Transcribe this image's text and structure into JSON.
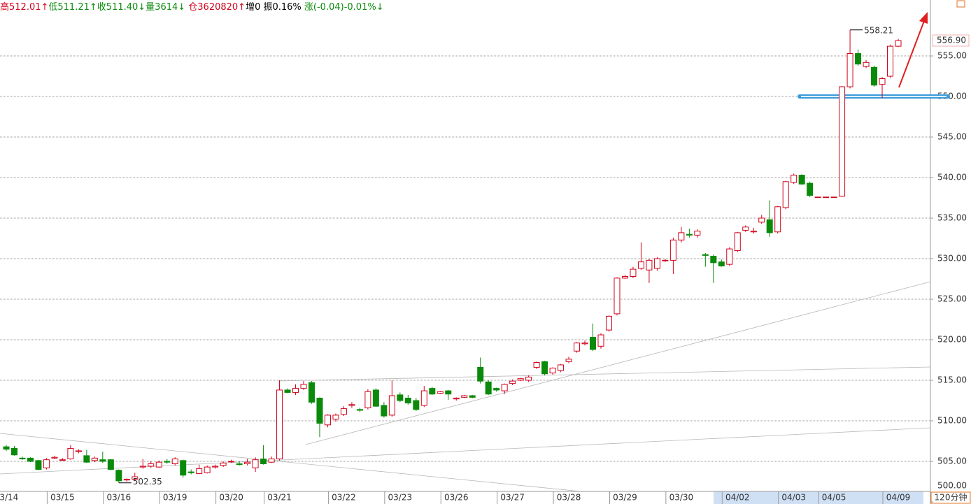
{
  "chart_data": {
    "type": "candlestick",
    "header": [
      {
        "text": "高512.01↑",
        "color": "#d0021b"
      },
      {
        "text": "低511.21↑",
        "color": "#0a8a0a"
      },
      {
        "text": "收511.40↓",
        "color": "#0a8a0a"
      },
      {
        "text": "量3614↓ ",
        "color": "#0a8a0a"
      },
      {
        "text": "仓3620820↑",
        "color": "#d0021b"
      },
      {
        "text": "增0 ",
        "color": "#000000"
      },
      {
        "text": "振0.16% ",
        "color": "#000000"
      },
      {
        "text": "涨(-0.04)-0.01%↓",
        "color": "#0a8a0a"
      }
    ],
    "period": "120分钟",
    "categories": [
      "03/14",
      null,
      null,
      null,
      null,
      null,
      null,
      "03/15",
      null,
      null,
      null,
      null,
      null,
      null,
      "03/16",
      null,
      null,
      null,
      null,
      null,
      null,
      "03/19",
      null,
      null,
      null,
      null,
      null,
      null,
      "03/20",
      null,
      null,
      null,
      null,
      null,
      "03/21",
      null,
      null,
      null,
      null,
      null,
      null,
      null,
      "03/22",
      null,
      null,
      null,
      null,
      null,
      null,
      "03/23",
      null,
      null,
      null,
      null,
      null,
      null,
      "03/26",
      null,
      null,
      null,
      null,
      null,
      null,
      "03/27",
      null,
      null,
      null,
      null,
      null,
      null,
      "03/28",
      null,
      null,
      null,
      null,
      null,
      null,
      "03/29",
      null,
      null,
      null,
      null,
      null,
      null,
      "03/30",
      null,
      null,
      null,
      null,
      null,
      null,
      "04/02",
      null,
      null,
      null,
      null,
      null,
      null,
      "04/03",
      null,
      null,
      null,
      null,
      "04/05",
      null,
      null,
      null,
      null,
      null,
      null,
      null,
      "04/09"
    ],
    "open": [
      506.8,
      506.6,
      505.4,
      505.4,
      505.1,
      504.2,
      505.4,
      505.2,
      505.3,
      506.2,
      505.7,
      505.1,
      505.2,
      505.2,
      503.9,
      502.7,
      502.8,
      504.3,
      504.4,
      504.3,
      505.0,
      504.7,
      505.1,
      503.7,
      503.5,
      503.6,
      504.3,
      504.5,
      505.0,
      504.7,
      504.7,
      504.2,
      505.3,
      504.9,
      505.3,
      513.8,
      513.5,
      514.0,
      514.7,
      512.8,
      509.5,
      510.2,
      510.8,
      511.9,
      511.4,
      511.6,
      513.8,
      511.9,
      510.7,
      513.2,
      512.8,
      512.5,
      511.9,
      514.0,
      513.4,
      513.7,
      512.7,
      512.9,
      513.1,
      516.6,
      514.8,
      514.0,
      513.7,
      514.6,
      515.0,
      515.0,
      516.6,
      517.3,
      515.9,
      516.2,
      517.3,
      518.6,
      519.5,
      520.3,
      519.2,
      521.2,
      523.2,
      527.6,
      527.8,
      528.8,
      528.6,
      528.8,
      529.8,
      529.8,
      532.3,
      533.0,
      532.9,
      530.5,
      530.3,
      529.6,
      529.3,
      531.0,
      533.5,
      533.3,
      534.5,
      534.8,
      533.3,
      536.3,
      539.4,
      540.3,
      539.3,
      537.6,
      537.6,
      537.6,
      537.7,
      551.2,
      555.3,
      553.7,
      553.6,
      551.5,
      552.5,
      556.2
    ],
    "high": [
      507.0,
      506.9,
      505.6,
      505.5,
      505.2,
      505.4,
      505.7,
      505.4,
      507.0,
      506.5,
      506.4,
      505.6,
      506.2,
      505.3,
      504.0,
      502.9,
      503.6,
      505.3,
      505.0,
      505.1,
      505.3,
      505.5,
      505.2,
      504.0,
      504.6,
      504.5,
      504.6,
      505.0,
      505.2,
      505.0,
      505.3,
      505.5,
      507.0,
      505.6,
      515.0,
      514.0,
      514.5,
      514.9,
      514.9,
      512.9,
      510.8,
      510.9,
      511.8,
      512.3,
      511.6,
      513.9,
      514.0,
      512.3,
      515.0,
      513.5,
      513.2,
      512.8,
      514.3,
      514.2,
      513.7,
      513.8,
      512.9,
      513.2,
      513.2,
      517.8,
      515.0,
      514.1,
      514.6,
      515.1,
      515.3,
      515.6,
      517.3,
      517.4,
      516.6,
      517.0,
      517.9,
      519.7,
      519.9,
      522.0,
      520.8,
      523.0,
      527.7,
      528.0,
      529.0,
      532.0,
      530.0,
      530.2,
      530.0,
      532.6,
      533.9,
      533.7,
      533.6,
      530.7,
      530.5,
      529.9,
      531.4,
      533.3,
      534.1,
      533.8,
      535.4,
      537.2,
      536.5,
      539.6,
      540.5,
      540.4,
      539.5,
      537.6,
      537.6,
      537.6,
      551.3,
      558.21,
      555.8,
      554.5,
      553.8,
      552.4,
      556.4,
      557.1
    ],
    "low": [
      506.3,
      505.7,
      505.2,
      504.9,
      503.9,
      504.0,
      505.3,
      505.1,
      505.2,
      506.0,
      504.8,
      504.9,
      504.8,
      503.9,
      502.35,
      502.5,
      502.6,
      504.1,
      504.2,
      504.2,
      504.7,
      504.5,
      503.0,
      503.4,
      503.4,
      503.5,
      504.1,
      504.3,
      504.8,
      504.5,
      504.5,
      503.7,
      504.6,
      504.8,
      505.1,
      513.4,
      513.2,
      513.8,
      512.1,
      508.0,
      509.2,
      509.9,
      510.6,
      511.6,
      511.1,
      511.4,
      511.7,
      510.4,
      510.5,
      512.3,
      512.0,
      511.2,
      511.7,
      513.2,
      513.3,
      512.6,
      512.5,
      512.8,
      512.8,
      514.6,
      513.2,
      513.6,
      513.3,
      514.4,
      514.9,
      514.8,
      516.4,
      515.6,
      515.7,
      516.0,
      517.1,
      518.4,
      519.3,
      518.6,
      518.9,
      521.0,
      523.0,
      527.5,
      527.6,
      528.6,
      527.0,
      528.5,
      529.6,
      528.1,
      532.0,
      532.6,
      532.6,
      529.0,
      527.0,
      529.0,
      529.1,
      530.8,
      533.3,
      533.1,
      534.3,
      532.7,
      533.1,
      536.1,
      539.2,
      539.1,
      537.6,
      537.6,
      537.6,
      537.6,
      537.6,
      551.0,
      553.8,
      553.5,
      551.2,
      549.8,
      552.3,
      556.1
    ],
    "close": [
      506.5,
      505.8,
      505.3,
      505.0,
      504.0,
      505.2,
      505.5,
      505.2,
      506.6,
      506.3,
      504.9,
      505.4,
      505.0,
      504.0,
      502.6,
      502.8,
      503.1,
      504.4,
      504.7,
      504.9,
      504.9,
      505.3,
      503.3,
      503.6,
      504.1,
      504.3,
      504.4,
      504.8,
      505.0,
      504.6,
      504.9,
      505.2,
      504.7,
      505.3,
      513.8,
      513.5,
      514.0,
      514.5,
      512.3,
      509.7,
      510.7,
      510.7,
      511.5,
      512.0,
      511.3,
      513.6,
      511.8,
      510.6,
      513.1,
      512.5,
      512.2,
      511.4,
      513.7,
      513.3,
      513.6,
      513.3,
      512.8,
      513.1,
      512.9,
      514.9,
      513.3,
      513.8,
      514.5,
      514.9,
      515.2,
      515.4,
      517.2,
      515.8,
      516.5,
      516.9,
      517.6,
      519.6,
      519.6,
      518.8,
      520.6,
      522.9,
      527.6,
      527.8,
      528.7,
      529.6,
      529.8,
      530.0,
      529.8,
      532.3,
      533.2,
      532.9,
      533.4,
      530.4,
      529.5,
      529.1,
      531.2,
      533.2,
      533.9,
      533.4,
      535.0,
      533.2,
      536.4,
      539.5,
      540.3,
      539.2,
      537.8,
      537.6,
      537.6,
      537.6,
      551.2,
      555.3,
      554.0,
      554.2,
      551.4,
      552.2,
      556.2,
      556.9
    ],
    "up_color": "#d0021b",
    "down_color": "#0a8a0a",
    "ylim": [
      500,
      561.9
    ],
    "yticks": [
      {
        "value": 500,
        "label": "500.00"
      },
      {
        "value": 505,
        "label": "505.00"
      },
      {
        "value": 510,
        "label": "510.00"
      },
      {
        "value": 515,
        "label": "515.00"
      },
      {
        "value": 520,
        "label": "520.00"
      },
      {
        "value": 525,
        "label": "525.00"
      },
      {
        "value": 530,
        "label": "530.00"
      },
      {
        "value": 535,
        "label": "535.00"
      },
      {
        "value": 540,
        "label": "540.00"
      },
      {
        "value": 545,
        "label": "545.00"
      },
      {
        "value": 550,
        "label": "550.00"
      },
      {
        "value": 555,
        "label": "555.00"
      }
    ],
    "grid": true,
    "high_label": 558.21,
    "low_label": 502.35,
    "last_price": {
      "value": 556.9,
      "label": "556.90"
    },
    "level_line": {
      "value": 550,
      "color": "#3a9ad9"
    }
  }
}
